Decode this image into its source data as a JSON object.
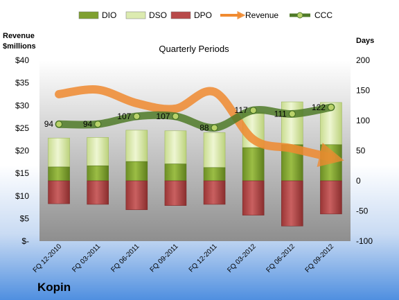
{
  "chart_data": {
    "type": "bar",
    "title": "Quarterly Periods",
    "company": "Kopin",
    "y_left_label": "Revenue $millions",
    "y_right_label": "Days",
    "y_left_range": [
      0,
      40
    ],
    "y_right_range": [
      -100,
      200
    ],
    "y_left_ticks": [
      "$-",
      "$5",
      "$10",
      "$15",
      "$20",
      "$25",
      "$30",
      "$35",
      "$40"
    ],
    "y_right_ticks": [
      "-100",
      "-50",
      "0",
      "50",
      "100",
      "150",
      "200"
    ],
    "categories": [
      "FQ 12-2010",
      "FQ 03-2011",
      "FQ 06-2011",
      "FQ 09-2011",
      "FQ 12-2011",
      "FQ 03-2012",
      "FQ 06-2012",
      "FQ 09-2012"
    ],
    "legend": {
      "position": "top",
      "items": [
        {
          "name": "DIO",
          "color": "#7fa030"
        },
        {
          "name": "DSO",
          "color": "#dcebb0"
        },
        {
          "name": "DPO",
          "color": "#b84a4a"
        },
        {
          "name": "Revenue",
          "color": "#f08a30"
        },
        {
          "name": "CCC",
          "color": "#4f7a28"
        }
      ]
    },
    "series": [
      {
        "name": "DIO",
        "axis": "days",
        "values": [
          23,
          25,
          32,
          28,
          22,
          55,
          60,
          60
        ]
      },
      {
        "name": "DSO",
        "axis": "days",
        "values": [
          48,
          47,
          52,
          55,
          58,
          58,
          71,
          70
        ]
      },
      {
        "name": "DPO",
        "axis": "days",
        "values": [
          -38,
          -39,
          -48,
          -41,
          -39,
          -57,
          -75,
          -55
        ]
      },
      {
        "name": "Revenue",
        "axis": "revenue",
        "values": [
          32.5,
          33.5,
          30.5,
          29.3,
          33.0,
          22.5,
          20.5,
          18.5
        ]
      },
      {
        "name": "CCC",
        "axis": "days",
        "values": [
          94,
          94,
          107,
          107,
          88,
          117,
          111,
          122
        ]
      }
    ],
    "data_labels": [
      "94",
      "94",
      "107",
      "107",
      "88",
      "117",
      "111",
      "122"
    ],
    "grid": false
  }
}
